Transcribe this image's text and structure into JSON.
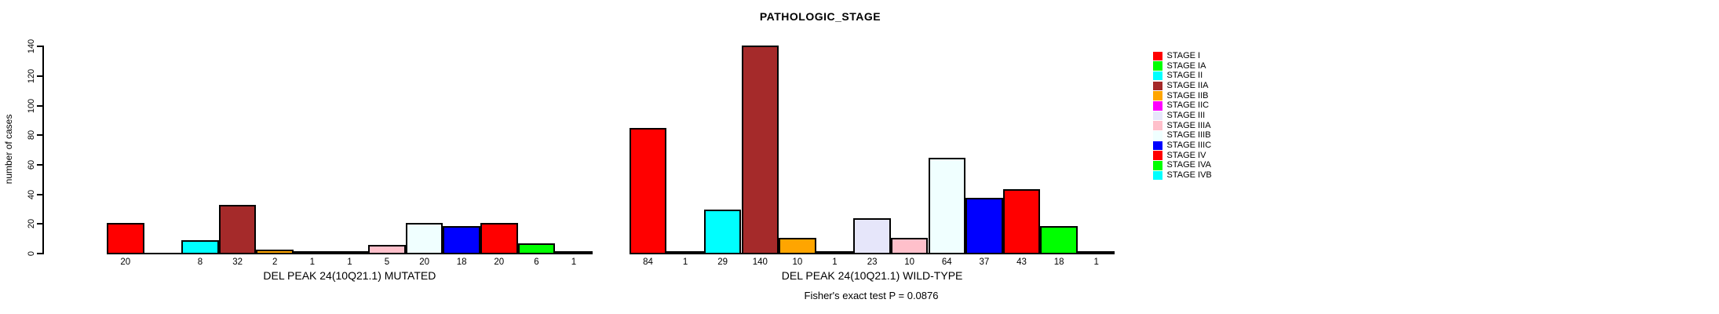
{
  "chart_data": {
    "type": "bar",
    "title": "PATHOLOGIC_STAGE",
    "ylabel": "number of cases",
    "yticks": [
      0,
      20,
      40,
      60,
      80,
      100,
      120,
      140
    ],
    "ylim": [
      0,
      140
    ],
    "grid": false,
    "legend_position": "right",
    "annotation": "Fisher's exact test P = 0.0876",
    "categories": [
      "STAGE I",
      "STAGE IA",
      "STAGE II",
      "STAGE IIA",
      "STAGE IIB",
      "STAGE IIC",
      "STAGE III",
      "STAGE IIIA",
      "STAGE IIIB",
      "STAGE IIIC",
      "STAGE IV",
      "STAGE IVA",
      "STAGE IVB"
    ],
    "colors": [
      "#FF0000",
      "#00FF00",
      "#00FFFF",
      "#A52A2A",
      "#FFA500",
      "#FF00FF",
      "#E6E6FA",
      "#FFC0CB",
      "#F0FFFF",
      "#0000FF",
      "#FF0000",
      "#00FF00",
      "#00FFFF"
    ],
    "series": [
      {
        "name": "DEL PEAK 24(10Q21.1) MUTATED",
        "values": [
          20,
          0,
          8,
          32,
          2,
          1,
          1,
          5,
          20,
          18,
          20,
          6,
          1
        ]
      },
      {
        "name": "DEL PEAK 24(10Q21.1) WILD-TYPE",
        "values": [
          84,
          1,
          29,
          140,
          10,
          1,
          23,
          10,
          64,
          37,
          43,
          18,
          1
        ]
      }
    ]
  }
}
